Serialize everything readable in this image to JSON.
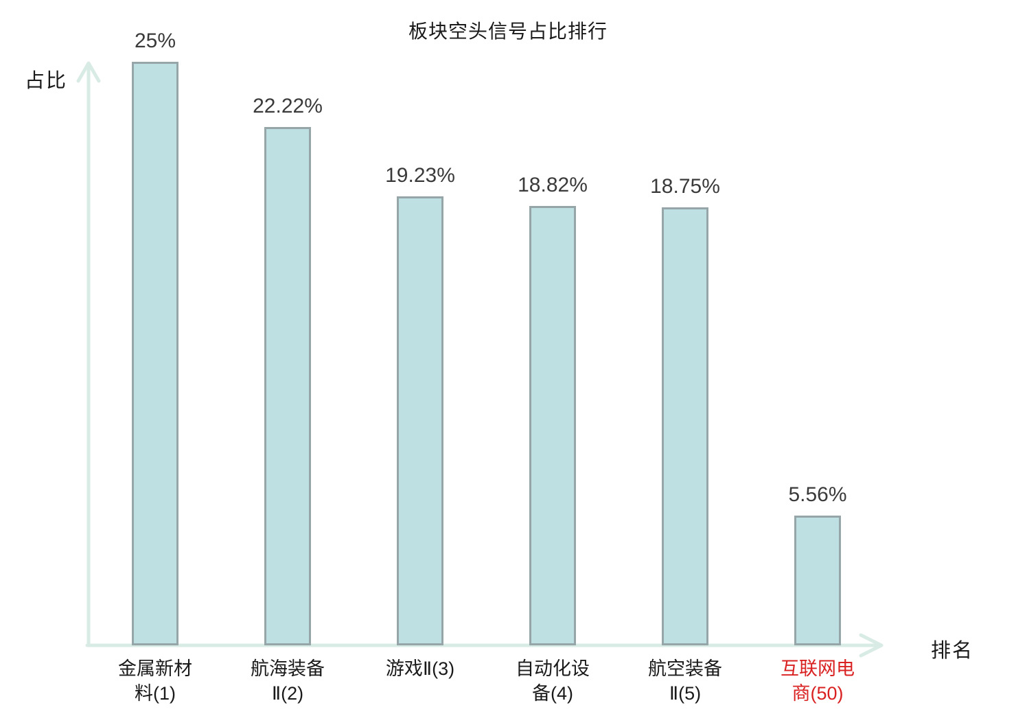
{
  "title": "板块空头信号占比排行",
  "y_axis_label": "占比",
  "x_axis_label": "排名",
  "colors": {
    "bar_fill": "#bfe0e3",
    "bar_border": "#95a5a8",
    "axis": "#d9ebe5",
    "text": "#1a1a1a",
    "value_text": "#3a3a3a",
    "highlight": "#d92121",
    "background": "#ffffff"
  },
  "chart_data": {
    "type": "bar",
    "title": "板块空头信号占比排行",
    "xlabel": "排名",
    "ylabel": "占比",
    "ylim": [
      0,
      25
    ],
    "grid": false,
    "legend": false,
    "categories": [
      "金属新材料(1)",
      "航海装备Ⅱ(2)",
      "游戏Ⅱ(3)",
      "自动化设备(4)",
      "航空装备Ⅱ(5)",
      "互联网电商(50)"
    ],
    "values": [
      25,
      22.22,
      19.23,
      18.82,
      18.75,
      5.56
    ],
    "value_labels": [
      "25%",
      "22.22%",
      "19.23%",
      "18.82%",
      "18.75%",
      "5.56%"
    ],
    "bars": [
      {
        "category": "金属新材料(1)",
        "tick_label": "金属新材\n料(1)",
        "value": 25,
        "value_label": "25%",
        "highlight": false
      },
      {
        "category": "航海装备Ⅱ(2)",
        "tick_label": "航海装备\nⅡ(2)",
        "value": 22.22,
        "value_label": "22.22%",
        "highlight": false
      },
      {
        "category": "游戏Ⅱ(3)",
        "tick_label": "游戏Ⅱ(3)",
        "value": 19.23,
        "value_label": "19.23%",
        "highlight": false
      },
      {
        "category": "自动化设备(4)",
        "tick_label": "自动化设\n备(4)",
        "value": 18.82,
        "value_label": "18.82%",
        "highlight": false
      },
      {
        "category": "航空装备Ⅱ(5)",
        "tick_label": "航空装备\nⅡ(5)",
        "value": 18.75,
        "value_label": "18.75%",
        "highlight": false
      },
      {
        "category": "互联网电商(50)",
        "tick_label": "互联网电\n商(50)",
        "value": 5.56,
        "value_label": "5.56%",
        "highlight": true
      }
    ]
  }
}
